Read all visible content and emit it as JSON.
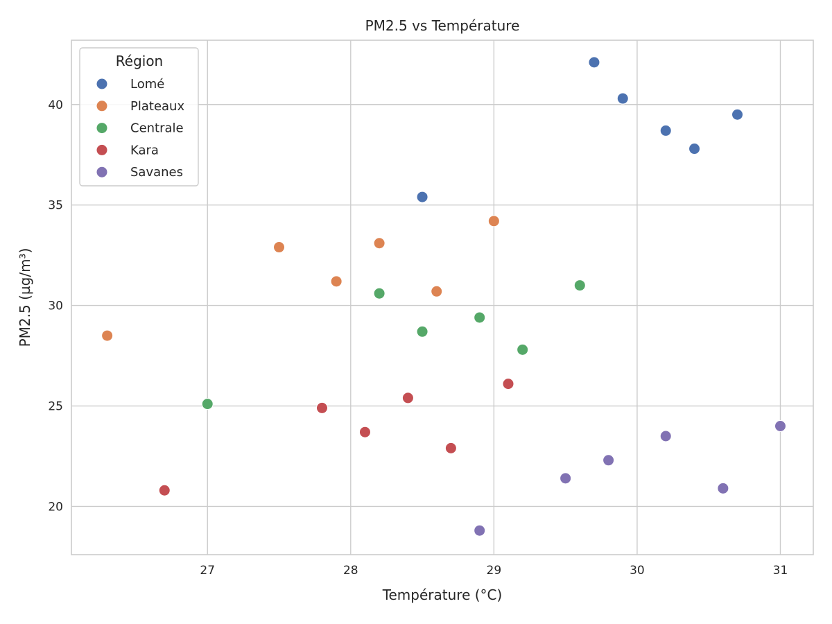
{
  "chart_data": {
    "type": "scatter",
    "title": "PM2.5 vs Température",
    "xlabel": "Température (°C)",
    "ylabel": "PM2.5 (µg/m³)",
    "xlim": [
      26.05,
      31.23
    ],
    "ylim": [
      17.6,
      43.2
    ],
    "xticks": [
      27,
      28,
      29,
      30,
      31
    ],
    "yticks": [
      20,
      25,
      30,
      35,
      40
    ],
    "grid": true,
    "legend": {
      "title": "Région",
      "position": "top-left"
    },
    "series": [
      {
        "name": "Lomé",
        "color": "#4c72b0",
        "points": [
          {
            "x": 28.5,
            "y": 35.4
          },
          {
            "x": 29.7,
            "y": 42.1
          },
          {
            "x": 29.9,
            "y": 40.3
          },
          {
            "x": 30.2,
            "y": 38.7
          },
          {
            "x": 30.4,
            "y": 37.8
          },
          {
            "x": 30.7,
            "y": 39.5
          }
        ]
      },
      {
        "name": "Plateaux",
        "color": "#dd8452",
        "points": [
          {
            "x": 26.3,
            "y": 28.5
          },
          {
            "x": 27.5,
            "y": 32.9
          },
          {
            "x": 27.9,
            "y": 31.2
          },
          {
            "x": 28.2,
            "y": 33.1
          },
          {
            "x": 28.6,
            "y": 30.7
          },
          {
            "x": 29.0,
            "y": 34.2
          }
        ]
      },
      {
        "name": "Centrale",
        "color": "#55a868",
        "points": [
          {
            "x": 27.0,
            "y": 25.1
          },
          {
            "x": 28.2,
            "y": 30.6
          },
          {
            "x": 28.5,
            "y": 28.7
          },
          {
            "x": 28.9,
            "y": 29.4
          },
          {
            "x": 29.2,
            "y": 27.8
          },
          {
            "x": 29.6,
            "y": 31.0
          }
        ]
      },
      {
        "name": "Kara",
        "color": "#c44e52",
        "points": [
          {
            "x": 26.7,
            "y": 20.8
          },
          {
            "x": 27.8,
            "y": 24.9
          },
          {
            "x": 28.1,
            "y": 23.7
          },
          {
            "x": 28.4,
            "y": 25.4
          },
          {
            "x": 28.7,
            "y": 22.9
          },
          {
            "x": 29.1,
            "y": 26.1
          }
        ]
      },
      {
        "name": "Savanes",
        "color": "#8172b3",
        "points": [
          {
            "x": 28.9,
            "y": 18.8
          },
          {
            "x": 29.5,
            "y": 21.4
          },
          {
            "x": 29.8,
            "y": 22.3
          },
          {
            "x": 30.2,
            "y": 23.5
          },
          {
            "x": 30.6,
            "y": 20.9
          },
          {
            "x": 31.0,
            "y": 24.0
          }
        ]
      }
    ]
  }
}
